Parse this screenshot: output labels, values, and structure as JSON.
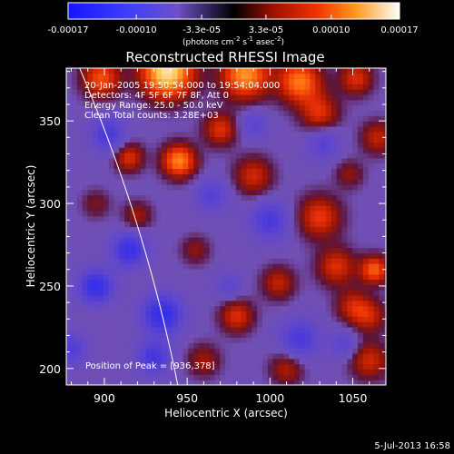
{
  "chart_data": {
    "type": "heatmap",
    "title": "Reconstructed RHESSI Image",
    "xlabel": "Heliocentric X (arcsec)",
    "ylabel": "Heliocentric Y (arcsec)",
    "xlim": [
      877,
      1070
    ],
    "ylim": [
      190,
      382
    ],
    "x_ticks": [
      900,
      950,
      1000,
      1050
    ],
    "y_ticks": [
      200,
      250,
      300,
      350
    ],
    "colorbar": {
      "min": -0.00017,
      "max": 0.00017,
      "tick_values": [
        -0.00017,
        -0.0001,
        -3.3e-05,
        3.3e-05,
        0.0001,
        0.00017
      ],
      "tick_labels": [
        "-0.00017",
        "-0.00010",
        "-3.3e-05",
        "3.3e-05",
        "0.00010",
        "0.00017"
      ],
      "unit_label": "(photons cm",
      "unit_exp1": "-2",
      "unit_mid": " s",
      "unit_exp2": "-1",
      "unit_mid2": " asec",
      "unit_exp3": "-2",
      "unit_end": ")"
    },
    "annotations": {
      "time": "20-Jan-2005 19:50:54.000 to 19:54:04.000",
      "detectors": "Detectors: 4F 5F 6F 7F 8F, Att 0",
      "energy": "Energy Range: 25.0 - 50.0 keV",
      "clean": "Clean  Total counts: 3.28E+03",
      "peak": "Position of Peak = [936,378]"
    },
    "limb": "white curve marking the solar limb",
    "blobs": [
      {
        "x": 938,
        "y": 380,
        "v": 1.25,
        "s": 11
      },
      {
        "x": 985,
        "y": 378,
        "v": 0.95,
        "s": 10
      },
      {
        "x": 1018,
        "y": 374,
        "v": 0.85,
        "s": 9
      },
      {
        "x": 898,
        "y": 376,
        "v": 0.7,
        "s": 8
      },
      {
        "x": 1052,
        "y": 376,
        "v": 0.55,
        "s": 7
      },
      {
        "x": 1030,
        "y": 355,
        "v": 0.55,
        "s": 8
      },
      {
        "x": 1065,
        "y": 340,
        "v": 0.45,
        "s": 7
      },
      {
        "x": 970,
        "y": 345,
        "v": 0.55,
        "s": 7
      },
      {
        "x": 945,
        "y": 326,
        "v": 0.9,
        "s": 7
      },
      {
        "x": 990,
        "y": 317,
        "v": 0.5,
        "s": 8
      },
      {
        "x": 915,
        "y": 328,
        "v": 0.55,
        "s": 6
      },
      {
        "x": 1030,
        "y": 292,
        "v": 0.6,
        "s": 9
      },
      {
        "x": 1040,
        "y": 262,
        "v": 0.55,
        "s": 8
      },
      {
        "x": 1005,
        "y": 252,
        "v": 0.45,
        "s": 7
      },
      {
        "x": 1063,
        "y": 260,
        "v": 0.75,
        "s": 6
      },
      {
        "x": 1060,
        "y": 232,
        "v": 0.45,
        "s": 7
      },
      {
        "x": 980,
        "y": 232,
        "v": 0.55,
        "s": 7
      },
      {
        "x": 920,
        "y": 293,
        "v": 0.35,
        "s": 6
      },
      {
        "x": 1060,
        "y": 205,
        "v": 0.5,
        "s": 8
      },
      {
        "x": 1010,
        "y": 200,
        "v": 0.4,
        "s": 7
      },
      {
        "x": 960,
        "y": 205,
        "v": 0.35,
        "s": 7
      },
      {
        "x": 955,
        "y": 272,
        "v": 0.3,
        "s": 6
      },
      {
        "x": 1048,
        "y": 318,
        "v": 0.3,
        "s": 6
      },
      {
        "x": 895,
        "y": 300,
        "v": 0.25,
        "s": 6
      },
      {
        "x": 1050,
        "y": 238,
        "v": 0.45,
        "s": 7
      },
      {
        "x": 915,
        "y": 272,
        "v": -0.75,
        "s": 7
      },
      {
        "x": 895,
        "y": 250,
        "v": -0.8,
        "s": 7
      },
      {
        "x": 935,
        "y": 233,
        "v": -0.85,
        "s": 8
      },
      {
        "x": 930,
        "y": 207,
        "v": -0.6,
        "s": 7
      },
      {
        "x": 902,
        "y": 342,
        "v": -0.55,
        "s": 7
      },
      {
        "x": 1000,
        "y": 290,
        "v": -0.55,
        "s": 8
      },
      {
        "x": 1018,
        "y": 218,
        "v": -0.55,
        "s": 8
      },
      {
        "x": 1032,
        "y": 337,
        "v": -0.4,
        "s": 7
      },
      {
        "x": 965,
        "y": 305,
        "v": -0.4,
        "s": 7
      },
      {
        "x": 990,
        "y": 348,
        "v": -0.35,
        "s": 6
      },
      {
        "x": 1045,
        "y": 215,
        "v": -0.35,
        "s": 6
      },
      {
        "x": 880,
        "y": 212,
        "v": -0.45,
        "s": 7
      },
      {
        "x": 975,
        "y": 250,
        "v": -0.3,
        "s": 6
      }
    ]
  },
  "footer": {
    "date": "5-Jul-2013 16:58"
  }
}
